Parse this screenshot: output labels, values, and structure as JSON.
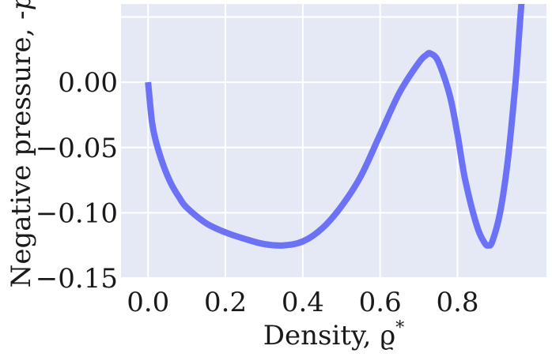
{
  "chart_data": {
    "type": "line",
    "title": "",
    "xlabel": "Density, ϱ*",
    "xlabel_main": "Density, ϱ",
    "xlabel_sup": "*",
    "ylabel": "Negative pressure, -p",
    "ylabel_main": "Negative pressure, -",
    "ylabel_italic": "p",
    "xlim": [
      -0.07,
      1.03
    ],
    "ylim": [
      -0.15,
      0.06
    ],
    "xticks": [
      0.0,
      0.2,
      0.4,
      0.6,
      0.8
    ],
    "xtick_labels": [
      "0.0",
      "0.2",
      "0.4",
      "0.6",
      "0.8"
    ],
    "yticks": [
      -0.15,
      -0.1,
      -0.05,
      0.0,
      0.05
    ],
    "ytick_labels": [
      "−0.15",
      "−0.10",
      "−0.05",
      "0.00",
      ""
    ],
    "grid": true,
    "background": "#e5e9f5",
    "grid_color": "#ffffff",
    "line_color": "#6b72f5",
    "series": [
      {
        "x": [
          0.0,
          0.01,
          0.02,
          0.04,
          0.06,
          0.08,
          0.1,
          0.15,
          0.2,
          0.25,
          0.3,
          0.35,
          0.4,
          0.45,
          0.5,
          0.55,
          0.6,
          0.65,
          0.7,
          0.72,
          0.73,
          0.75,
          0.78,
          0.8,
          0.82,
          0.85,
          0.87,
          0.88,
          0.89,
          0.91,
          0.93,
          0.95,
          0.96,
          0.97,
          0.98
        ],
        "y": [
          0.0,
          -0.03,
          -0.045,
          -0.064,
          -0.078,
          -0.088,
          -0.096,
          -0.108,
          -0.115,
          -0.12,
          -0.124,
          -0.125,
          -0.122,
          -0.112,
          -0.095,
          -0.072,
          -0.04,
          -0.008,
          0.015,
          0.021,
          0.022,
          0.016,
          -0.01,
          -0.04,
          -0.075,
          -0.11,
          -0.123,
          -0.125,
          -0.122,
          -0.1,
          -0.06,
          0.0,
          0.04,
          0.08,
          0.12
        ]
      }
    ]
  }
}
